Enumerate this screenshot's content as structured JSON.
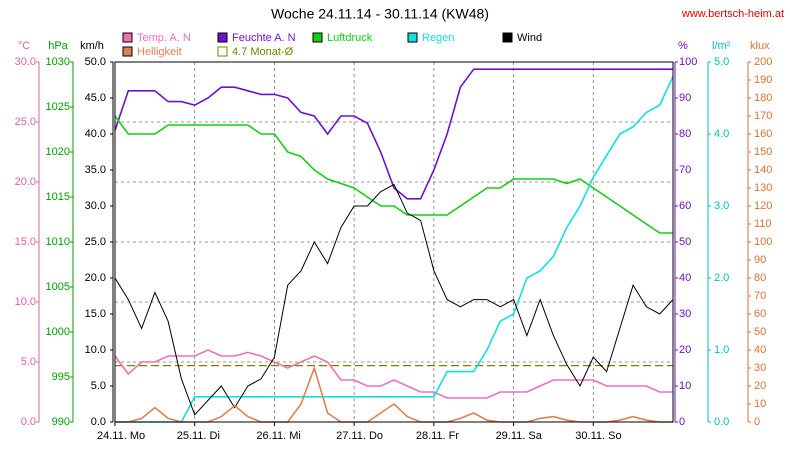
{
  "chart_data": {
    "type": "line",
    "title": "Woche 24.11.14 - 30.11.14 (KW48)",
    "source": "www.bertsch-heim.at",
    "x": [
      0,
      4,
      8,
      12,
      16,
      20,
      24,
      28,
      32,
      36,
      40,
      44,
      48,
      52,
      56,
      60,
      64,
      68,
      72,
      76,
      80,
      84,
      88,
      92,
      96,
      100,
      104,
      108,
      112,
      116,
      120,
      124,
      128,
      132,
      136,
      140,
      144,
      148,
      152,
      156,
      160,
      164,
      168
    ],
    "xlim": [
      0,
      168
    ],
    "xticks": [
      {
        "value": 0,
        "label": "24.11. Mo"
      },
      {
        "value": 24,
        "label": "25.11. Di"
      },
      {
        "value": 48,
        "label": "26.11. Mi"
      },
      {
        "value": 72,
        "label": "27.11. Do"
      },
      {
        "value": 96,
        "label": "28.11. Fr"
      },
      {
        "value": 120,
        "label": "29.11. Sa"
      },
      {
        "value": 144,
        "label": "30.11. So"
      }
    ],
    "grid": true,
    "grid_axis": 0,
    "axes": [
      {
        "unit": "°C",
        "side": "left",
        "color": "#e060a0",
        "lim": [
          0,
          30
        ],
        "ticks": [
          {
            "value": 0,
            "label": "0.0"
          },
          {
            "value": 5,
            "label": "5.0"
          },
          {
            "value": 10,
            "label": "10.0"
          },
          {
            "value": 15,
            "label": "15.0"
          },
          {
            "value": 20,
            "label": "20.0"
          },
          {
            "value": 25,
            "label": "25.0"
          },
          {
            "value": 30,
            "label": "30.0"
          }
        ]
      },
      {
        "unit": "hPa",
        "side": "left",
        "color": "#00a000",
        "lim": [
          990,
          1030
        ],
        "ticks": [
          990,
          995,
          1000,
          1005,
          1010,
          1015,
          1020,
          1025,
          1030
        ]
      },
      {
        "unit": "km/h",
        "side": "left",
        "color": "#000000",
        "lim": [
          0,
          50
        ],
        "ticks": [
          {
            "value": 0,
            "label": "0.0"
          },
          {
            "value": 5,
            "label": "5.0"
          },
          {
            "value": 10,
            "label": "10.0"
          },
          {
            "value": 15,
            "label": "15.0"
          },
          {
            "value": 20,
            "label": "20.0"
          },
          {
            "value": 25,
            "label": "25.0"
          },
          {
            "value": 30,
            "label": "30.0"
          },
          {
            "value": 35,
            "label": "35.0"
          },
          {
            "value": 40,
            "label": "40.0"
          },
          {
            "value": 45,
            "label": "45.0"
          },
          {
            "value": 50,
            "label": "50.0"
          }
        ]
      },
      {
        "unit": "%",
        "side": "right",
        "color": "#6a10c0",
        "lim": [
          0,
          100
        ],
        "ticks": [
          0,
          10,
          20,
          30,
          40,
          50,
          60,
          70,
          80,
          90,
          100
        ]
      },
      {
        "unit": "l/m²",
        "side": "right",
        "color": "#00c0c0",
        "lim": [
          0,
          5
        ],
        "ticks": [
          {
            "value": 0,
            "label": "0.0"
          },
          {
            "value": 1,
            "label": "1.0"
          },
          {
            "value": 2,
            "label": "2.0"
          },
          {
            "value": 3,
            "label": "3.0"
          },
          {
            "value": 4,
            "label": "4.0"
          },
          {
            "value": 5,
            "label": "5.0"
          }
        ]
      },
      {
        "unit": "klux",
        "side": "right",
        "color": "#e07030",
        "lim": [
          0,
          200
        ],
        "ticks": [
          0,
          10,
          20,
          30,
          40,
          50,
          60,
          70,
          80,
          90,
          100,
          110,
          120,
          130,
          140,
          150,
          160,
          170,
          180,
          190,
          200
        ]
      }
    ],
    "series": [
      {
        "name": "Temp. A. N",
        "axis": 0,
        "color": "#f070b8",
        "values": [
          5.5,
          4,
          5,
          5,
          5.5,
          5.5,
          5.5,
          6,
          5.5,
          5.5,
          5.8,
          5.5,
          5,
          4.5,
          5,
          5.5,
          5,
          3.5,
          3.5,
          3,
          3,
          3.5,
          3,
          2.5,
          2.5,
          2,
          2,
          2,
          2,
          2.5,
          2.5,
          2.5,
          3,
          3.5,
          3.5,
          3.5,
          3.5,
          3,
          3,
          3,
          3,
          2.5,
          2.5
        ]
      },
      {
        "name": "Feuchte A. N",
        "axis": 3,
        "color": "#7010d0",
        "values": [
          81,
          92,
          92,
          92,
          89,
          89,
          88,
          90,
          93,
          93,
          92,
          91,
          91,
          90,
          86,
          85,
          80,
          85,
          85,
          83,
          75,
          65,
          62,
          62,
          70,
          80,
          93,
          98,
          98,
          98,
          98,
          98,
          98,
          98,
          98,
          98,
          98,
          98,
          98,
          98,
          98,
          98,
          98
        ]
      },
      {
        "name": "Luftdruck",
        "axis": 1,
        "color": "#10d010",
        "values": [
          1024,
          1022,
          1022,
          1022,
          1023,
          1023,
          1023,
          1023,
          1023,
          1023,
          1023,
          1022,
          1022,
          1020,
          1019.5,
          1018,
          1017,
          1016.5,
          1016,
          1015,
          1014,
          1014,
          1013,
          1013,
          1013,
          1013,
          1014,
          1015,
          1016,
          1016,
          1017,
          1017,
          1017,
          1017,
          1016.5,
          1017,
          1016,
          1015,
          1014,
          1013,
          1012,
          1011,
          1011
        ]
      },
      {
        "name": "Regen",
        "axis": 4,
        "color": "#10e0e0",
        "values": [
          0,
          0,
          0,
          0,
          0,
          0,
          0.35,
          0.35,
          0.35,
          0.35,
          0.35,
          0.35,
          0.35,
          0.35,
          0.35,
          0.35,
          0.35,
          0.35,
          0.35,
          0.35,
          0.35,
          0.35,
          0.35,
          0.35,
          0.35,
          0.7,
          0.7,
          0.7,
          1.0,
          1.4,
          1.5,
          2.0,
          2.1,
          2.3,
          2.7,
          3.0,
          3.4,
          3.7,
          4.0,
          4.1,
          4.3,
          4.4,
          4.8
        ]
      },
      {
        "name": "Wind",
        "axis": 2,
        "color": "#000000",
        "values": [
          20,
          17,
          13,
          18,
          14,
          6,
          1,
          3,
          5,
          2,
          5,
          6,
          9,
          19,
          21,
          25,
          22,
          27,
          30,
          30,
          32,
          33,
          29,
          28,
          21,
          17,
          16,
          17,
          17,
          16,
          17,
          12,
          17,
          12,
          8,
          5,
          9,
          7,
          13,
          19,
          16,
          15,
          17
        ]
      },
      {
        "name": "Helligkeit",
        "axis": 5,
        "color": "#e08050",
        "values": [
          0,
          0,
          2,
          8,
          2,
          0,
          0,
          0,
          3,
          9,
          3,
          0,
          0,
          0,
          10,
          30,
          5,
          0,
          0,
          0,
          5,
          10,
          3,
          0,
          0,
          0,
          2,
          5,
          1,
          0,
          0,
          0,
          2,
          3,
          1,
          0,
          0,
          0,
          1,
          3,
          1,
          0,
          0
        ]
      }
    ],
    "reference": {
      "name": "4.7 Monat-Ø",
      "axis": 0,
      "value": 4.7,
      "color": "#808000"
    }
  }
}
